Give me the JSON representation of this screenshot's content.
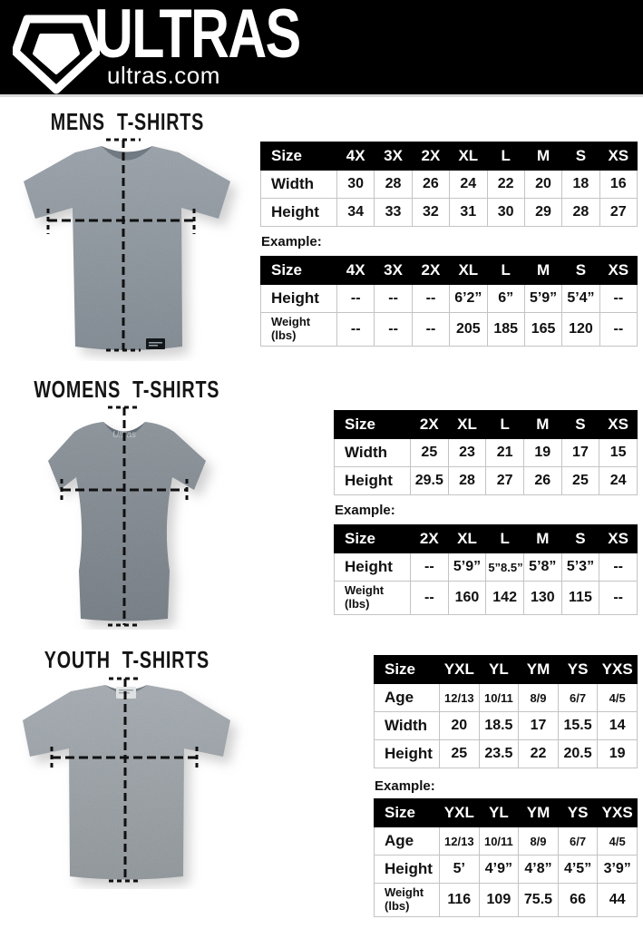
{
  "header": {
    "brand": "ULTRAS",
    "site": "ultras.com"
  },
  "sections": {
    "mens": {
      "title": "MENS T-SHIRTS",
      "example_label": "Example:",
      "size_table": {
        "columns": [
          "Size",
          "4X",
          "3X",
          "2X",
          "XL",
          "L",
          "M",
          "S",
          "XS"
        ],
        "rows": [
          {
            "label": "Width",
            "values": [
              "30",
              "28",
              "26",
              "24",
              "22",
              "20",
              "18",
              "16"
            ]
          },
          {
            "label": "Height",
            "values": [
              "34",
              "33",
              "32",
              "31",
              "30",
              "29",
              "28",
              "27"
            ]
          }
        ]
      },
      "example_table": {
        "columns": [
          "Size",
          "4X",
          "3X",
          "2X",
          "XL",
          "L",
          "M",
          "S",
          "XS"
        ],
        "rows": [
          {
            "label": "Height",
            "values": [
              "--",
              "--",
              "--",
              "6’2”",
              "6”",
              "5’9”",
              "5’4”",
              "--"
            ]
          },
          {
            "label": "Weight\n(lbs)",
            "values": [
              "--",
              "--",
              "--",
              "205",
              "185",
              "165",
              "120",
              "--"
            ]
          }
        ]
      }
    },
    "womens": {
      "title": "WOMENS T-SHIRTS",
      "example_label": "Example:",
      "collar_text": "Ultras",
      "size_table": {
        "columns": [
          "Size",
          "2X",
          "XL",
          "L",
          "M",
          "S",
          "XS"
        ],
        "rows": [
          {
            "label": "Width",
            "values": [
              "25",
              "23",
              "21",
              "19",
              "17",
              "15"
            ]
          },
          {
            "label": "Height",
            "values": [
              "29.5",
              "28",
              "27",
              "26",
              "25",
              "24"
            ]
          }
        ]
      },
      "example_table": {
        "columns": [
          "Size",
          "2X",
          "XL",
          "L",
          "M",
          "S",
          "XS"
        ],
        "rows": [
          {
            "label": "Height",
            "values": [
              "--",
              "5’9”",
              "5”8.5”",
              "5’8”",
              "5’3”",
              "--"
            ]
          },
          {
            "label": "Weight\n(lbs)",
            "values": [
              "--",
              "160",
              "142",
              "130",
              "115",
              "--"
            ]
          }
        ]
      }
    },
    "youth": {
      "title": "YOUTH T-SHIRTS",
      "example_label": "Example:",
      "size_table": {
        "columns": [
          "Size",
          "YXL",
          "YL",
          "YM",
          "YS",
          "YXS"
        ],
        "rows": [
          {
            "label": "Age",
            "values": [
              "12/13",
              "10/11",
              "8/9",
              "6/7",
              "4/5"
            ]
          },
          {
            "label": "Width",
            "values": [
              "20",
              "18.5",
              "17",
              "15.5",
              "14"
            ]
          },
          {
            "label": "Height",
            "values": [
              "25",
              "23.5",
              "22",
              "20.5",
              "19"
            ]
          }
        ]
      },
      "example_table": {
        "columns": [
          "Size",
          "YXL",
          "YL",
          "YM",
          "YS",
          "YXS"
        ],
        "rows": [
          {
            "label": "Age",
            "values": [
              "12/13",
              "10/11",
              "8/9",
              "6/7",
              "4/5"
            ]
          },
          {
            "label": "Height",
            "values": [
              "5’",
              "4’9”",
              "4’8”",
              "4’5”",
              "3’9”"
            ]
          },
          {
            "label": "Weight\n(lbs)",
            "values": [
              "116",
              "109",
              "75.5",
              "66",
              "44"
            ]
          }
        ]
      }
    }
  }
}
